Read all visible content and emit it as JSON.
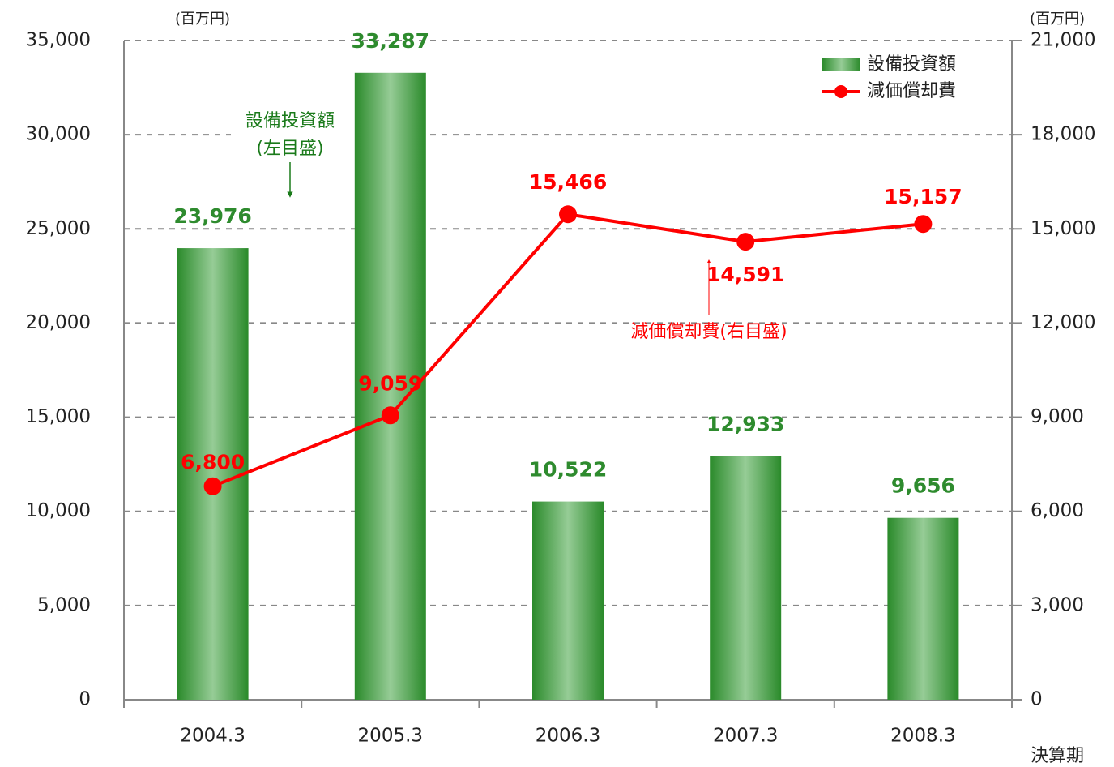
{
  "chart_data": {
    "type": "bar",
    "y_unit": "(百万円)",
    "y2_unit": "(百万円)",
    "x_label": "決算期",
    "categories": [
      "2004.3",
      "2005.3",
      "2006.3",
      "2007.3",
      "2008.3"
    ],
    "series": [
      {
        "name": "設備投資額",
        "type": "bar",
        "color": "#2e8b2e",
        "values": [
          23976,
          33287,
          10522,
          12933,
          9656
        ],
        "value_labels": [
          "23,976",
          "33,287",
          "10,522",
          "12,933",
          "9,656"
        ]
      },
      {
        "name": "減価償却費",
        "type": "line",
        "axis": "y2",
        "color": "#ff0000",
        "values": [
          6800,
          9059,
          15466,
          14591,
          15157
        ],
        "value_labels": [
          "6,800",
          "9,059",
          "15,466",
          "14,591",
          "15,157"
        ]
      }
    ],
    "ylim": [
      0,
      35000
    ],
    "yticks": [
      0,
      {
        "value": 5000,
        "label": "5,000"
      },
      {
        "value": 10000,
        "label": "10,000"
      },
      {
        "value": 15000,
        "label": "15,000"
      },
      {
        "value": 20000,
        "label": "20,000"
      },
      {
        "value": 25000,
        "label": "25,000"
      },
      {
        "value": 30000,
        "label": "30,000"
      },
      {
        "value": 35000,
        "label": "35,000"
      }
    ],
    "y2lim": [
      0,
      21000
    ],
    "y2ticks": [
      0,
      {
        "value": 3000,
        "label": "3,000"
      },
      {
        "value": 6000,
        "label": "6,000"
      },
      {
        "value": 9000,
        "label": "9,000"
      },
      {
        "value": 12000,
        "label": "12,000"
      },
      {
        "value": 15000,
        "label": "15,000"
      },
      {
        "value": 18000,
        "label": "18,000"
      },
      {
        "value": 21000,
        "label": "21,000"
      }
    ],
    "grid": true,
    "legend": "upper right",
    "annotations": [
      {
        "text": [
          "設備投資額",
          "(左目盛)"
        ],
        "series": 0
      },
      {
        "text": [
          "減価償却費(右目盛)"
        ],
        "series": 1
      }
    ]
  }
}
